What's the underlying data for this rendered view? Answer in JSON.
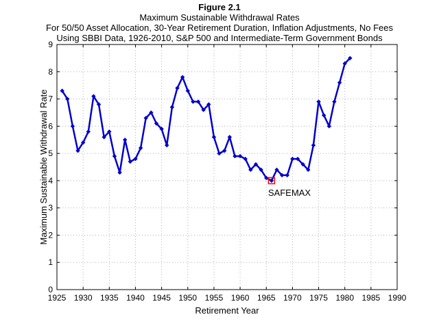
{
  "figure_label": "Figure 2.1",
  "chart_data": {
    "type": "line",
    "title": "Maximum Sustainable Withdrawal Rates",
    "subtitle_lines": [
      "For 50/50 Asset Allocation, 30-Year Retirement Duration, Inflation Adjustments, No Fees",
      "Using SBBI Data, 1926-2010, S&P 500 and Intermediate-Term Government Bonds"
    ],
    "xlabel": "Retirement Year",
    "ylabel": "Maximum Sustainable Withdrawal Rate",
    "xlim": [
      1925,
      1990
    ],
    "ylim": [
      0,
      9
    ],
    "xticks": [
      1925,
      1930,
      1935,
      1940,
      1945,
      1950,
      1955,
      1960,
      1965,
      1970,
      1975,
      1980,
      1985,
      1990
    ],
    "yticks": [
      0,
      1,
      2,
      3,
      4,
      5,
      6,
      7,
      8,
      9
    ],
    "grid": true,
    "line_color": "#0000CC",
    "x": [
      1926,
      1927,
      1928,
      1929,
      1930,
      1931,
      1932,
      1933,
      1934,
      1935,
      1936,
      1937,
      1938,
      1939,
      1940,
      1941,
      1942,
      1943,
      1944,
      1945,
      1946,
      1947,
      1948,
      1949,
      1950,
      1951,
      1952,
      1953,
      1954,
      1955,
      1956,
      1957,
      1958,
      1959,
      1960,
      1961,
      1962,
      1963,
      1964,
      1965,
      1966,
      1967,
      1968,
      1969,
      1970,
      1971,
      1972,
      1973,
      1974,
      1975,
      1976,
      1977,
      1978,
      1979,
      1980,
      1981
    ],
    "values": [
      7.3,
      7.0,
      6.0,
      5.1,
      5.4,
      5.8,
      7.1,
      6.8,
      5.6,
      5.8,
      4.9,
      4.3,
      5.5,
      4.7,
      4.8,
      5.2,
      6.3,
      6.5,
      6.1,
      5.9,
      5.3,
      6.7,
      7.4,
      7.8,
      7.3,
      6.9,
      6.9,
      6.6,
      6.8,
      5.6,
      5.0,
      5.1,
      5.6,
      4.9,
      4.9,
      4.8,
      4.4,
      4.6,
      4.4,
      4.1,
      4.0,
      4.4,
      4.2,
      4.2,
      4.8,
      4.8,
      4.6,
      4.4,
      5.3,
      6.9,
      6.4,
      6.0,
      6.9,
      7.6,
      8.3,
      8.5
    ],
    "annotation": {
      "label": "SAFEMAX",
      "x": 1966,
      "y": 4.0,
      "marker_color": "#FF0000"
    }
  }
}
